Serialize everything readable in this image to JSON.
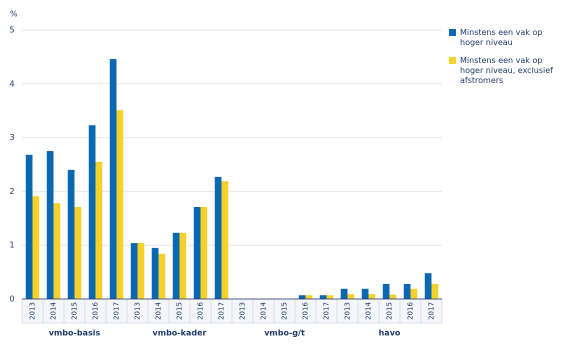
{
  "chart_data": {
    "type": "bar",
    "y_label": "%",
    "categories": [
      "2013",
      "2014",
      "2015",
      "2016",
      "2017",
      "2013",
      "2014",
      "2015",
      "2016",
      "2017",
      "2013",
      "2014",
      "2015",
      "2016",
      "2017",
      "2013",
      "2014",
      "2015",
      "2016",
      "2017"
    ],
    "groups": [
      "vmbo-basis",
      "vmbo-kader",
      "vmbo-g/t",
      "havo"
    ],
    "series": [
      {
        "name": "Minstens een vak op hoger niveau",
        "color": "#0a68b0",
        "values": [
          2.68,
          2.75,
          2.4,
          3.23,
          4.46,
          1.04,
          0.95,
          1.23,
          1.71,
          2.27,
          0,
          0,
          0,
          0.07,
          0.07,
          0.19,
          0.19,
          0.28,
          0.28,
          0.48
        ]
      },
      {
        "name": "Minstens een vak op hoger niveau, exclusief afstromers",
        "color": "#f6d12a",
        "values": [
          1.91,
          1.78,
          1.71,
          2.55,
          3.51,
          1.04,
          0.84,
          1.23,
          1.71,
          2.19,
          0,
          0,
          0,
          0.07,
          0.07,
          0.09,
          0.09,
          0.08,
          0.19,
          0.28
        ]
      }
    ],
    "ylim": [
      0,
      5
    ],
    "yticks": [
      0,
      1,
      2,
      3,
      4,
      5
    ],
    "grid": true,
    "legend": "top-right"
  }
}
